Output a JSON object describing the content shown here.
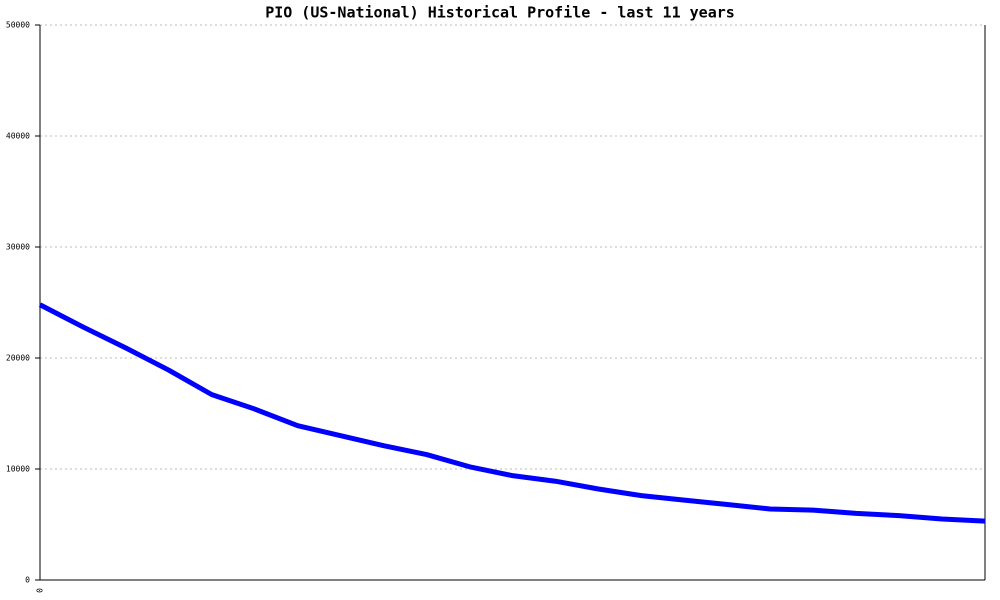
{
  "chart_data": {
    "type": "line",
    "title": "PIO (US-National) Historical Profile - last 11 years",
    "categories": [
      "0",
      null,
      null,
      null,
      null,
      null,
      null,
      null,
      null,
      null,
      null,
      null,
      null,
      null,
      null,
      null,
      null,
      null,
      null,
      null,
      null,
      null,
      null
    ],
    "series": [
      {
        "name": "PIO",
        "color": "#0000ff",
        "values": [
          24800,
          22800,
          20900,
          18900,
          16700,
          15400,
          13900,
          13000,
          12100,
          11300,
          10200,
          9400,
          8900,
          8200,
          7600,
          7200,
          6800,
          6400,
          6300,
          6000,
          5800,
          5500,
          5300
        ]
      }
    ],
    "ylim": [
      0,
      50000
    ],
    "yticks": [
      0,
      10000,
      20000,
      30000,
      40000,
      50000
    ],
    "grid": true
  }
}
